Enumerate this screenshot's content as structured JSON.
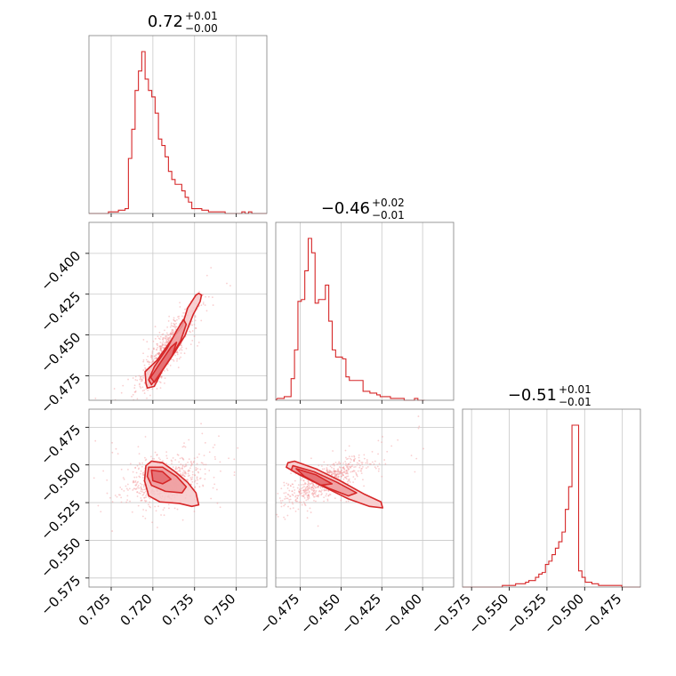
{
  "figure": {
    "colors": {
      "accent": "#d62728",
      "fill": "#f19496",
      "grid": "#c8c8c8",
      "frame": "#7f7f7f",
      "text": "#000000"
    }
  },
  "chart_data": [
    {
      "type": "histogram",
      "panel": "diag-0",
      "title_main": "0.72",
      "title_sup": "+0.01",
      "title_sub": "−0.00",
      "xlim": [
        0.697,
        0.761
      ],
      "bin_edges_start": 0.698,
      "bin_width": 0.0012,
      "counts": [
        0,
        0,
        0,
        0,
        0,
        1,
        1,
        1,
        2,
        2,
        3,
        34,
        52,
        76,
        88,
        100,
        83,
        76,
        72,
        62,
        46,
        42,
        35,
        26,
        21,
        18,
        18,
        14,
        10,
        7,
        3,
        3,
        3,
        2,
        2,
        1,
        1,
        1,
        1,
        1,
        0,
        0,
        0,
        0,
        0,
        1,
        0,
        1,
        0,
        0,
        0,
        0,
        0
      ]
    },
    {
      "type": "histogram",
      "panel": "diag-1",
      "title_main": "−0.46",
      "title_sup": "+0.02",
      "title_sub": "−0.01",
      "xlim": [
        -0.49,
        -0.381
      ],
      "bin_edges_start": -0.489,
      "bin_width": 0.0021,
      "counts": [
        1,
        1,
        2,
        2,
        12,
        28,
        55,
        56,
        72,
        90,
        82,
        54,
        56,
        56,
        64,
        44,
        28,
        24,
        24,
        23,
        13,
        11,
        11,
        11,
        11,
        5,
        5,
        4,
        4,
        3,
        2,
        2,
        2,
        1,
        1,
        1,
        1,
        0,
        0,
        0,
        1,
        0,
        0
      ]
    },
    {
      "type": "histogram",
      "panel": "diag-2",
      "title_main": "−0.51",
      "title_sup": "+0.01",
      "title_sub": "−0.01",
      "xlim": [
        -0.581,
        -0.463
      ],
      "bin_edges_start": -0.581,
      "bin_width": 0.0022,
      "counts": [
        0,
        0,
        0,
        0,
        0,
        0,
        0,
        0,
        0,
        0,
        0,
        0,
        1,
        1,
        1,
        1,
        2,
        2,
        2,
        3,
        4,
        4,
        6,
        8,
        9,
        14,
        16,
        20,
        24,
        28,
        34,
        48,
        62,
        100,
        100,
        10,
        6,
        3,
        3,
        2,
        2,
        1,
        1,
        1,
        1,
        1,
        1,
        1,
        0,
        0,
        0,
        0,
        0,
        0
      ]
    },
    {
      "type": "scatter",
      "panel": "joint-1-0",
      "xlim": [
        0.697,
        0.761
      ],
      "ylim": [
        -0.49,
        -0.381
      ],
      "yticks": [
        -0.475,
        -0.45,
        -0.425,
        -0.4
      ],
      "ytick_labels": [
        "−0.475",
        "−0.450",
        "−0.425",
        "−0.400"
      ],
      "mean": [
        0.7245,
        -0.4595
      ],
      "std": [
        0.0045,
        0.0105
      ],
      "corr": 0.88,
      "contours": [
        [
          [
            0.7175,
            -0.4795
          ],
          [
            0.7172,
            -0.4725
          ],
          [
            0.7215,
            -0.4655
          ],
          [
            0.7265,
            -0.4535
          ],
          [
            0.7305,
            -0.4445
          ],
          [
            0.7325,
            -0.4335
          ],
          [
            0.7355,
            -0.4255
          ],
          [
            0.7365,
            -0.4245
          ],
          [
            0.7375,
            -0.4255
          ],
          [
            0.737,
            -0.4295
          ],
          [
            0.7345,
            -0.4375
          ],
          [
            0.7315,
            -0.4505
          ],
          [
            0.7275,
            -0.4615
          ],
          [
            0.7235,
            -0.4715
          ],
          [
            0.7205,
            -0.4815
          ],
          [
            0.718,
            -0.4825
          ]
        ],
        [
          [
            0.7185,
            -0.4775
          ],
          [
            0.7205,
            -0.4695
          ],
          [
            0.725,
            -0.4585
          ],
          [
            0.7285,
            -0.4475
          ],
          [
            0.731,
            -0.4405
          ],
          [
            0.732,
            -0.4435
          ],
          [
            0.73,
            -0.4535
          ],
          [
            0.7265,
            -0.4635
          ],
          [
            0.7225,
            -0.4735
          ],
          [
            0.7195,
            -0.4805
          ]
        ],
        [
          [
            0.7192,
            -0.476
          ],
          [
            0.7225,
            -0.4675
          ],
          [
            0.7265,
            -0.4575
          ],
          [
            0.7285,
            -0.4545
          ],
          [
            0.727,
            -0.4625
          ],
          [
            0.7235,
            -0.4715
          ],
          [
            0.7205,
            -0.479
          ]
        ]
      ]
    },
    {
      "type": "scatter",
      "panel": "joint-2-0",
      "xlim": [
        0.697,
        0.761
      ],
      "ylim": [
        -0.581,
        -0.463
      ],
      "xticks": [
        0.705,
        0.72,
        0.735,
        0.75
      ],
      "xtick_labels": [
        "0.705",
        "0.720",
        "0.735",
        "0.750"
      ],
      "yticks": [
        -0.575,
        -0.55,
        -0.525,
        -0.5,
        -0.475
      ],
      "ytick_labels": [
        "−0.575",
        "−0.550",
        "−0.525",
        "−0.500",
        "−0.475"
      ],
      "mean": [
        0.7245,
        -0.5105
      ],
      "std": [
        0.0055,
        0.0065
      ],
      "corr": 0.25,
      "contours": [
        [
          [
            0.7175,
            -0.5005
          ],
          [
            0.7195,
            -0.4975
          ],
          [
            0.7235,
            -0.4985
          ],
          [
            0.728,
            -0.5045
          ],
          [
            0.7325,
            -0.5115
          ],
          [
            0.7355,
            -0.5185
          ],
          [
            0.7365,
            -0.5265
          ],
          [
            0.734,
            -0.5275
          ],
          [
            0.7295,
            -0.5255
          ],
          [
            0.7225,
            -0.5245
          ],
          [
            0.7185,
            -0.5205
          ],
          [
            0.717,
            -0.5105
          ]
        ],
        [
          [
            0.7185,
            -0.5015
          ],
          [
            0.7235,
            -0.5015
          ],
          [
            0.7285,
            -0.5075
          ],
          [
            0.732,
            -0.5145
          ],
          [
            0.7305,
            -0.5185
          ],
          [
            0.7245,
            -0.5175
          ],
          [
            0.7195,
            -0.5135
          ],
          [
            0.718,
            -0.5075
          ]
        ],
        [
          [
            0.7195,
            -0.5035
          ],
          [
            0.7235,
            -0.5045
          ],
          [
            0.7265,
            -0.5095
          ],
          [
            0.7235,
            -0.5125
          ],
          [
            0.72,
            -0.5105
          ]
        ]
      ]
    },
    {
      "type": "scatter",
      "panel": "joint-2-1",
      "xlim": [
        -0.49,
        -0.381
      ],
      "ylim": [
        -0.581,
        -0.463
      ],
      "xticks": [
        -0.475,
        -0.45,
        -0.425,
        -0.4
      ],
      "xtick_labels": [
        "−0.475",
        "−0.450",
        "−0.425",
        "−0.400"
      ],
      "mean": [
        -0.4595,
        -0.5105
      ],
      "std": [
        0.0105,
        0.0065
      ],
      "corr": 0.75,
      "contours": [
        [
          [
            -0.4825,
            -0.4985
          ],
          [
            -0.4785,
            -0.4975
          ],
          [
            -0.4655,
            -0.5025
          ],
          [
            -0.4505,
            -0.5105
          ],
          [
            -0.4355,
            -0.5195
          ],
          [
            -0.4255,
            -0.5245
          ],
          [
            -0.4245,
            -0.5285
          ],
          [
            -0.4325,
            -0.5275
          ],
          [
            -0.4455,
            -0.5225
          ],
          [
            -0.4605,
            -0.5145
          ],
          [
            -0.4755,
            -0.5065
          ],
          [
            -0.4835,
            -0.5015
          ]
        ],
        [
          [
            -0.4795,
            -0.5005
          ],
          [
            -0.4665,
            -0.5045
          ],
          [
            -0.4525,
            -0.5115
          ],
          [
            -0.4405,
            -0.5185
          ],
          [
            -0.4455,
            -0.5205
          ],
          [
            -0.4575,
            -0.5155
          ],
          [
            -0.4715,
            -0.5085
          ],
          [
            -0.4805,
            -0.5035
          ]
        ],
        [
          [
            -0.4775,
            -0.5025
          ],
          [
            -0.4655,
            -0.5065
          ],
          [
            -0.4555,
            -0.5125
          ],
          [
            -0.4625,
            -0.5135
          ],
          [
            -0.4725,
            -0.5075
          ]
        ]
      ]
    },
    {
      "type": "axis",
      "panel": "diag-0-axis",
      "xticks": [
        0.705,
        0.72,
        0.735,
        0.75
      ]
    },
    {
      "type": "axis",
      "panel": "diag-1-axis",
      "xticks": [
        -0.475,
        -0.45,
        -0.425,
        -0.4
      ]
    },
    {
      "type": "axis",
      "panel": "diag-2-axis",
      "xticks": [
        -0.575,
        -0.55,
        -0.525,
        -0.5,
        -0.475
      ],
      "xtick_labels": [
        "−0.575",
        "−0.550",
        "−0.525",
        "−0.500",
        "−0.475"
      ]
    }
  ]
}
